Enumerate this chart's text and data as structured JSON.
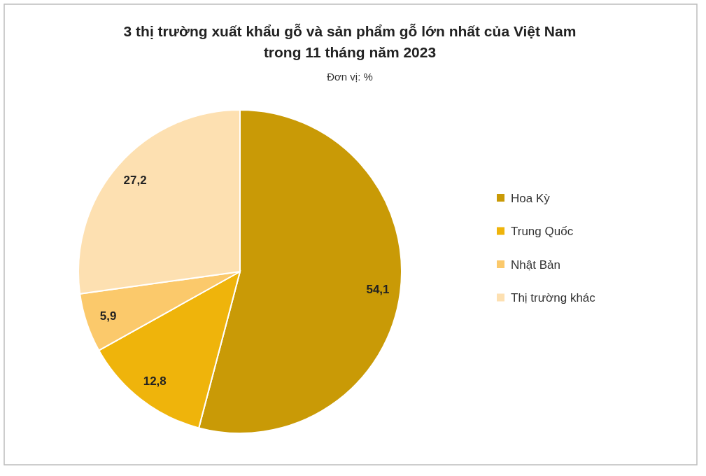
{
  "chart_data": {
    "type": "pie",
    "title": "3 thị trường xuất khẩu gỗ và sản phẩm gỗ lớn nhất của Việt Nam\ntrong 11 tháng năm 2023",
    "subtitle": "Đơn vị: %",
    "categories": [
      "Hoa Kỳ",
      "Trung Quốc",
      "Nhật Bản",
      "Thị trường khác"
    ],
    "values": [
      54.1,
      12.8,
      5.9,
      27.2
    ],
    "colors": [
      "#c99a06",
      "#efb40b",
      "#fbc96b",
      "#fde0b1"
    ],
    "value_labels": [
      "54,1",
      "12,8",
      "5,9",
      "27,2"
    ],
    "legend": "right"
  }
}
